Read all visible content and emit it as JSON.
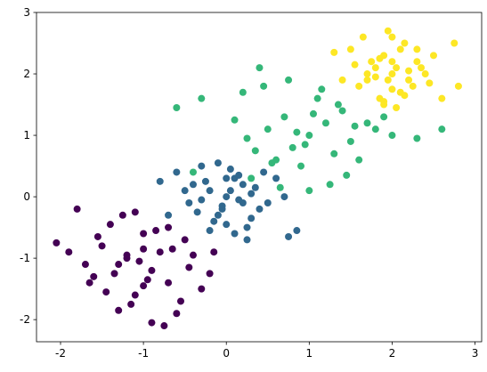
{
  "chart_data": {
    "type": "scatter",
    "xlim": [
      -2.29,
      3.08
    ],
    "ylim": [
      -2.36,
      3.0
    ],
    "xticks": [
      -2,
      -1,
      0,
      1,
      2,
      3
    ],
    "yticks": [
      -2,
      -1,
      0,
      1,
      2,
      3
    ],
    "series": [
      {
        "color": "#440154",
        "x": [
          -1.2,
          -0.9,
          -1.5,
          -0.7,
          -1.0,
          -1.3,
          -0.8,
          -1.6,
          -1.1,
          -0.5,
          -1.9,
          -2.05,
          -0.3,
          -1.4,
          -0.6,
          -1.05,
          -1.25,
          -0.95,
          -1.7,
          -0.4,
          -1.15,
          -0.85,
          -1.35,
          -0.75,
          -1.55,
          -0.2,
          -1.8,
          -0.65,
          -1.45,
          -1.0,
          -0.55,
          -1.1,
          -0.9,
          -1.3,
          -0.15,
          -0.45,
          -1.65,
          -0.7,
          -1.2,
          -1.0
        ],
        "y": [
          -1.0,
          -1.2,
          -0.8,
          -1.4,
          -0.6,
          -1.1,
          -0.9,
          -1.3,
          -1.6,
          -0.7,
          -0.9,
          -0.75,
          -1.5,
          -0.45,
          -1.9,
          -1.05,
          -0.3,
          -1.35,
          -1.1,
          -0.95,
          -1.75,
          -0.55,
          -1.25,
          -2.1,
          -0.65,
          -1.25,
          -0.2,
          -0.85,
          -1.55,
          -1.45,
          -1.7,
          -0.25,
          -2.05,
          -1.85,
          -0.9,
          -1.15,
          -1.4,
          -0.5,
          -0.95,
          -0.85
        ]
      },
      {
        "color": "#31688e",
        "x": [
          0.0,
          -0.2,
          0.2,
          0.1,
          -0.1,
          0.3,
          -0.3,
          0.05,
          -0.4,
          0.4,
          -0.15,
          0.15,
          -0.05,
          0.25,
          -0.25,
          0.35,
          -0.35,
          0.5,
          -0.5,
          0.7,
          -0.7,
          0.1,
          -0.1,
          0.0,
          0.2,
          -0.2,
          0.6,
          -0.6,
          0.3,
          0.75,
          -0.45,
          0.45,
          0.05,
          -0.05,
          0.15,
          0.85,
          -0.8,
          0.25,
          -0.3,
          0.0
        ],
        "y": [
          0.0,
          0.1,
          -0.1,
          0.3,
          -0.3,
          0.05,
          -0.05,
          0.45,
          0.2,
          -0.2,
          -0.4,
          0.35,
          -0.15,
          -0.5,
          0.25,
          0.15,
          -0.25,
          -0.1,
          0.1,
          0.0,
          -0.3,
          -0.6,
          0.55,
          -0.45,
          0.2,
          -0.55,
          0.3,
          0.4,
          -0.35,
          -0.65,
          -0.1,
          0.4,
          0.1,
          -0.2,
          -0.05,
          -0.55,
          0.25,
          -0.7,
          0.5,
          0.3
        ]
      },
      {
        "color": "#35b779",
        "x": [
          1.0,
          0.8,
          1.2,
          0.6,
          1.4,
          0.5,
          1.5,
          0.9,
          1.1,
          0.3,
          1.7,
          0.7,
          1.3,
          0.2,
          1.8,
          -0.4,
          -0.3,
          0.4,
          1.6,
          0.95,
          1.05,
          0.65,
          1.35,
          2.0,
          0.1,
          1.25,
          0.75,
          2.3,
          0.55,
          1.15,
          -0.6,
          0.35,
          0.85,
          1.45,
          1.9,
          0.45,
          1.55,
          0.25,
          1.0,
          2.6
        ],
        "y": [
          1.0,
          0.8,
          1.2,
          0.6,
          1.4,
          1.1,
          0.9,
          0.5,
          1.6,
          0.3,
          1.2,
          1.3,
          0.7,
          1.7,
          1.1,
          0.4,
          1.6,
          2.1,
          0.6,
          0.85,
          1.35,
          0.15,
          1.5,
          1.0,
          1.25,
          0.2,
          1.9,
          0.95,
          0.55,
          1.75,
          1.45,
          0.75,
          1.05,
          0.35,
          1.3,
          1.8,
          1.15,
          0.95,
          0.1,
          1.1
        ]
      },
      {
        "color": "#fde725",
        "x": [
          2.0,
          1.8,
          2.2,
          1.9,
          2.1,
          1.7,
          2.3,
          1.6,
          2.4,
          1.5,
          2.0,
          1.85,
          2.15,
          1.95,
          2.05,
          1.75,
          2.25,
          2.5,
          1.4,
          2.6,
          1.9,
          2.1,
          1.65,
          2.35,
          2.0,
          1.8,
          2.2,
          1.55,
          2.45,
          2.75,
          1.3,
          2.8,
          1.95,
          2.05,
          1.85,
          2.15,
          1.7,
          2.3,
          2.0,
          1.9
        ],
        "y": [
          2.0,
          2.1,
          1.9,
          2.3,
          1.7,
          2.0,
          2.2,
          1.8,
          2.0,
          2.4,
          2.6,
          1.6,
          2.5,
          1.9,
          2.1,
          2.2,
          1.8,
          2.3,
          1.9,
          1.6,
          1.5,
          2.4,
          2.6,
          2.1,
          1.75,
          1.95,
          2.05,
          2.15,
          1.85,
          2.5,
          2.35,
          1.8,
          2.7,
          1.45,
          2.25,
          1.65,
          1.9,
          2.4,
          2.2,
          1.55
        ]
      }
    ]
  }
}
